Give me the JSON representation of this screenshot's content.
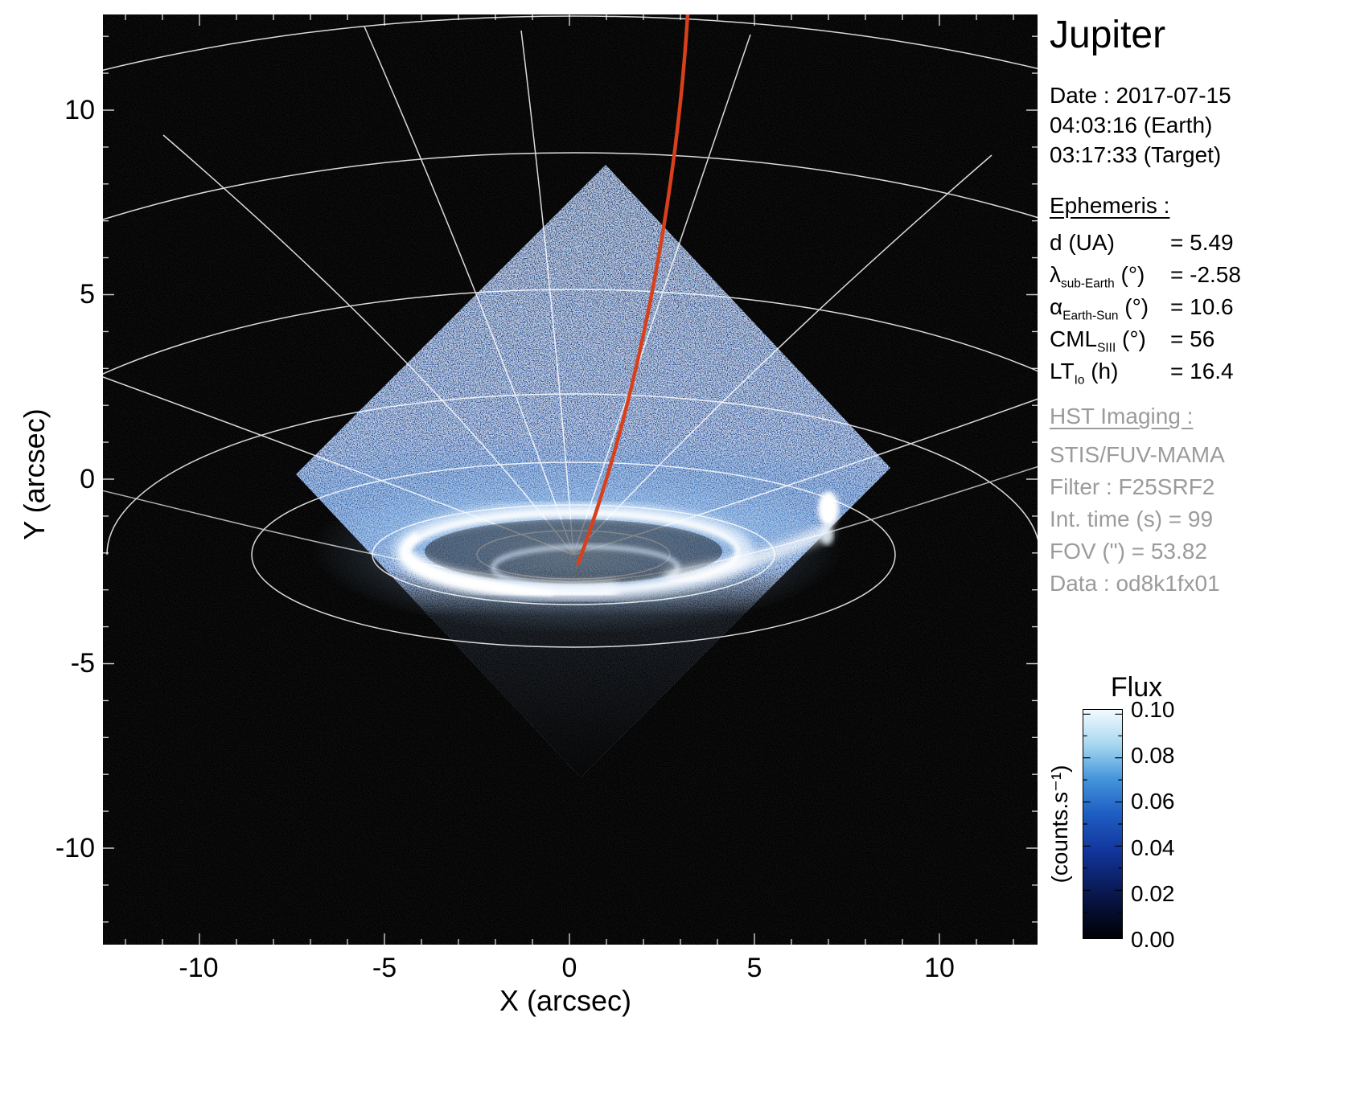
{
  "title": "Jupiter",
  "observation": {
    "date": "Date : 2017-07-15",
    "time_earth": "04:03:16 (Earth)",
    "time_target": "03:17:33 (Target)"
  },
  "ephemeris": {
    "header": "Ephemeris :",
    "rows": [
      {
        "base": "d",
        "sub": "",
        "unit": " (UA)",
        "value": "= 5.49"
      },
      {
        "base": "λ",
        "sub": "sub-Earth",
        "unit": " (°)",
        "value": "= -2.58"
      },
      {
        "base": "α",
        "sub": "Earth-Sun",
        "unit": " (°)",
        "value": "= 10.6"
      },
      {
        "base": "CML",
        "sub": "SIII",
        "unit": " (°)",
        "value": "= 56"
      },
      {
        "base": "LT",
        "sub": "Io",
        "unit": " (h)",
        "value": "= 16.4"
      }
    ]
  },
  "hst_imaging": {
    "header": "HST Imaging :",
    "lines": [
      "STIS/FUV-MAMA",
      "Filter : F25SRF2",
      "Int. time (s) = 99",
      "FOV (\") = 53.82",
      "Data : od8k1fx01"
    ]
  },
  "chart_data": {
    "type": "heatmap",
    "title": "HST/STIS far-UV image of Jupiter's northern aurora",
    "xlabel": "X (arcsec)",
    "ylabel": "Y (arcsec)",
    "xlim": [
      -12.6,
      12.6
    ],
    "ylim": [
      -12.6,
      12.6
    ],
    "x_tick_labels": [
      "-10",
      "-5",
      "0",
      "5",
      "10"
    ],
    "y_tick_labels": [
      "10",
      "5",
      "0",
      "-5",
      "-10"
    ],
    "grid": "white planetocentric longitude/latitude graticule converging on the pole near (0, -2) arcsec",
    "colorbar": {
      "title": "Flux",
      "units": "(counts.s⁻¹)",
      "tick_labels": [
        "0.10",
        "0.08",
        "0.06",
        "0.04",
        "0.02",
        "0.00"
      ],
      "min": 0.0,
      "max": 0.1,
      "colors_bottom_to_top": [
        "#000003",
        "#081548",
        "#12359c",
        "#1f5fc4",
        "#4596dc",
        "#a8d8f0",
        "#f2faff"
      ]
    },
    "features": [
      "45°-rotated square STIS detector field of view filled with blue photon noise",
      "bright white auroral oval centered near (0, -2) arcsec",
      "bright emission patch near (7, -1) arcsec",
      "red meridian track running from the top of the frame down to the auroral region"
    ],
    "red_line_color": "#d8401c"
  }
}
